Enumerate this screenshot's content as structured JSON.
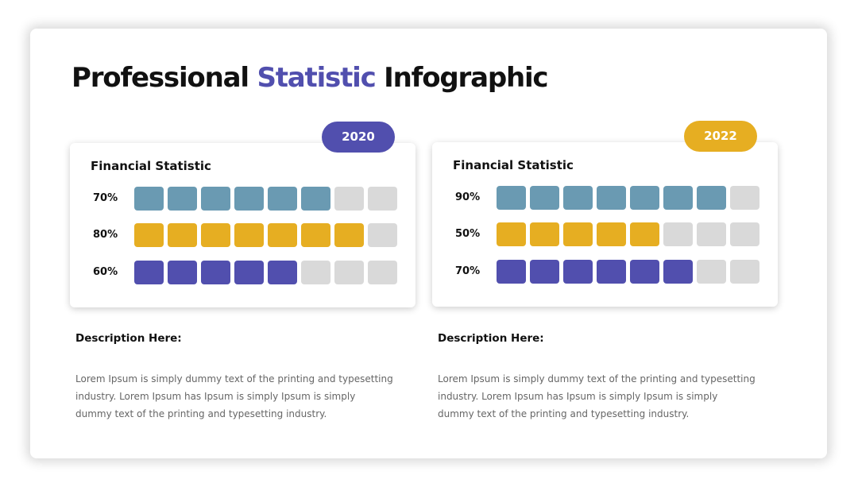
{
  "title": {
    "part1": "Professional",
    "accent": "Statistic",
    "part2": "Infographic"
  },
  "colors": {
    "accent_purple": "#514fae",
    "accent_yellow": "#e6ae22",
    "bar_blue": "#6a9ab2",
    "bar_yellow": "#e6ae22",
    "bar_purple": "#514fae",
    "bar_empty": "#d9d9d9"
  },
  "chart_data": [
    {
      "type": "bar",
      "year": "2020",
      "title": "Financial Statistic",
      "segments": 8,
      "series": [
        {
          "label": "70%",
          "value": 70,
          "filled": 6,
          "color": "#6a9ab2"
        },
        {
          "label": "80%",
          "value": 80,
          "filled": 7,
          "color": "#e6ae22"
        },
        {
          "label": "60%",
          "value": 60,
          "filled": 5,
          "color": "#514fae"
        }
      ]
    },
    {
      "type": "bar",
      "year": "2022",
      "title": "Financial Statistic",
      "segments": 8,
      "series": [
        {
          "label": "90%",
          "value": 90,
          "filled": 7,
          "color": "#6a9ab2"
        },
        {
          "label": "50%",
          "value": 50,
          "filled": 5,
          "color": "#e6ae22"
        },
        {
          "label": "70%",
          "value": 70,
          "filled": 6,
          "color": "#514fae"
        }
      ]
    }
  ],
  "descriptions": [
    {
      "heading": "Description Here:",
      "text": "Lorem Ipsum is simply dummy text of the printing and typesetting industry. Lorem Ipsum has Ipsum is simply Ipsum is simply dummy text of the printing and typesetting industry."
    },
    {
      "heading": "Description Here:",
      "text": "Lorem Ipsum is simply dummy text of the printing and typesetting industry. Lorem Ipsum has Ipsum is simply Ipsum is simply dummy text of the printing and typesetting industry."
    }
  ]
}
